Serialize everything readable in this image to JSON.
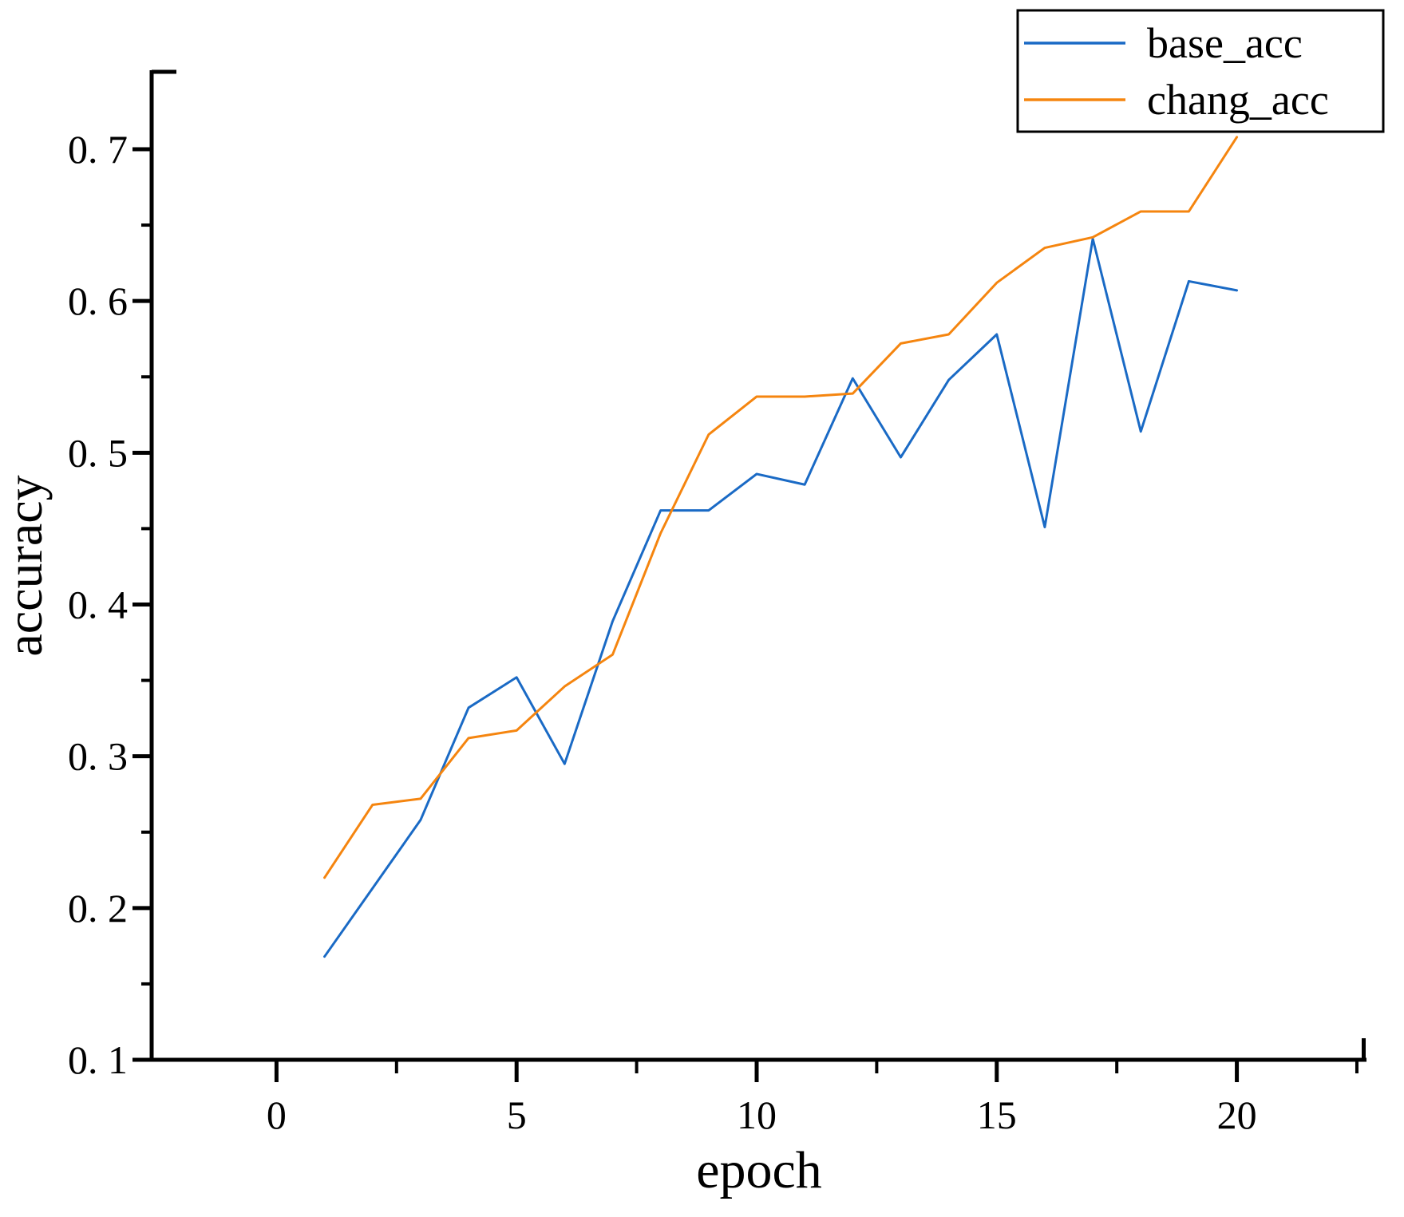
{
  "chart_data": {
    "type": "line",
    "title": "",
    "xlabel": "epoch",
    "ylabel": "accuracy",
    "x": [
      1,
      2,
      3,
      4,
      5,
      6,
      7,
      8,
      9,
      10,
      11,
      12,
      13,
      14,
      15,
      16,
      17,
      18,
      19,
      20
    ],
    "series": [
      {
        "name": "base_acc",
        "color": "#1a6ac5",
        "values": [
          0.168,
          0.213,
          0.258,
          0.332,
          0.352,
          0.295,
          0.389,
          0.462,
          0.462,
          0.486,
          0.479,
          0.549,
          0.497,
          0.548,
          0.578,
          0.451,
          0.641,
          0.514,
          0.613,
          0.607
        ]
      },
      {
        "name": "chang_acc",
        "color": "#f5850f",
        "values": [
          0.22,
          0.268,
          0.272,
          0.312,
          0.317,
          0.346,
          0.367,
          0.447,
          0.512,
          0.537,
          0.537,
          0.539,
          0.572,
          0.578,
          0.612,
          0.635,
          0.642,
          0.659,
          0.659,
          0.708
        ]
      }
    ],
    "legend": {
      "position": "upper right",
      "border_color": "#000000",
      "background": "#ffffff",
      "entries": [
        {
          "label": "base_acc"
        },
        {
          "label": "chang_acc"
        }
      ]
    },
    "axes": {
      "xlim": [
        -2.6,
        22.7
      ],
      "ylim": [
        0.1,
        0.751
      ],
      "x_major_ticks": [
        0,
        5,
        10,
        15,
        20
      ],
      "x_tick_labels": [
        "0",
        "5",
        "10",
        "15",
        "20"
      ],
      "x_minor_ticks": [
        2.5,
        7.5,
        12.5,
        17.5,
        22.5
      ],
      "y_major_ticks": [
        0.1,
        0.2,
        0.3,
        0.4,
        0.5,
        0.6,
        0.7
      ],
      "y_tick_labels": [
        "0. 1",
        "0. 2",
        "0. 3",
        "0. 4",
        "0. 5",
        "0. 6",
        "0. 7"
      ],
      "y_minor_ticks": [
        0.15,
        0.25,
        0.35,
        0.45,
        0.55,
        0.65
      ],
      "spine_color": "#000000",
      "grid": false
    }
  }
}
